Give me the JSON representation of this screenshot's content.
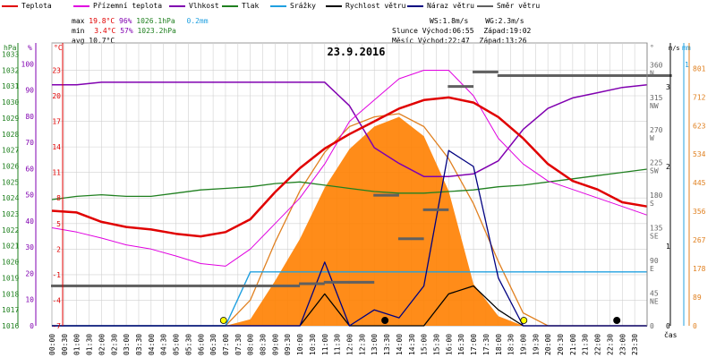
{
  "legend": [
    {
      "label": "Teplota",
      "color": "#e00000"
    },
    {
      "label": "Přízemní teplota",
      "color": "#e000e0"
    },
    {
      "label": "Vlhkost",
      "color": "#8000b0"
    },
    {
      "label": "Tlak",
      "color": "#208020"
    },
    {
      "label": "Srážky",
      "color": "#20a0e0"
    },
    {
      "label": "Rychlost větru",
      "color": "#000000"
    },
    {
      "label": "Náraz větru",
      "color": "#000080"
    },
    {
      "label": "Směr větru",
      "color": "#606060"
    }
  ],
  "stats": {
    "max": {
      "label": "max",
      "temp": "19.8°C",
      "hum": "96%",
      "press": "1026.1hPa",
      "rain": "0.2mm"
    },
    "min": {
      "label": "min",
      "temp": "3.4°C",
      "hum": "57%",
      "press": "1023.2hPa"
    },
    "avg": {
      "label": "avg",
      "temp": "10.7°C"
    }
  },
  "info": {
    "ws": "WS:1.8m/s",
    "wg": "WG:2.3m/s",
    "sun_label": "Slunce",
    "sun_rise": "Východ:06:55",
    "sun_set": "Západ:19:02",
    "moon_label": "Měsíc",
    "moon_rise": "Východ:22:47",
    "moon_set": "Západ:13:26"
  },
  "colors": {
    "temp": "#e00000",
    "ground": "#e000e0",
    "hum": "#8000b0",
    "press": "#208020",
    "rain": "#20a0e0",
    "wind": "#000000",
    "gust": "#000080",
    "dir": "#606060",
    "solar_fill": "#ff8000",
    "solar_curve": "#e08020",
    "grid": "#d0d0d0"
  },
  "chart_data": {
    "type": "line",
    "title": "23.9.2016",
    "xlabel": "čas",
    "x_ticks": [
      "00:00",
      "00:30",
      "01:00",
      "01:30",
      "02:00",
      "02:30",
      "03:00",
      "03:30",
      "04:00",
      "04:30",
      "05:00",
      "05:30",
      "06:00",
      "06:30",
      "07:00",
      "07:30",
      "08:00",
      "08:30",
      "09:00",
      "09:30",
      "10:00",
      "10:30",
      "11:00",
      "11:30",
      "12:00",
      "12:30",
      "13:00",
      "13:30",
      "14:00",
      "14:30",
      "15:00",
      "15:30",
      "16:00",
      "16:30",
      "17:00",
      "17:30",
      "18:00",
      "18:30",
      "19:00",
      "19:30",
      "20:00",
      "20:30",
      "21:00",
      "21:30",
      "22:00",
      "22:30",
      "23:00",
      "23:30"
    ],
    "axes": {
      "hpa": {
        "unit": "hPa",
        "ticks": [
          "1016",
          "1017",
          "1018",
          "1019",
          "1020",
          "1021",
          "1022",
          "1023",
          "1024",
          "1025",
          "1026",
          "1027",
          "1028",
          "1029",
          "1030",
          "1031",
          "1032",
          "1033"
        ]
      },
      "pct": {
        "unit": "%",
        "ticks": [
          "0",
          "10",
          "20",
          "30",
          "40",
          "50",
          "60",
          "70",
          "80",
          "90",
          "100"
        ]
      },
      "degc": {
        "unit": "°C",
        "ticks": [
          "-7",
          "-4",
          "-1",
          "2",
          "5",
          "8",
          "11",
          "14",
          "17",
          "20",
          "23"
        ]
      },
      "deg": {
        "unit": "°",
        "ticks": [
          "0",
          "45",
          "90",
          "135",
          "180",
          "225",
          "270",
          "315",
          "360"
        ],
        "dirs": [
          "NE",
          "E",
          "SE",
          "S",
          "SW",
          "W",
          "NW",
          "N"
        ]
      },
      "ms": {
        "unit": "m/s",
        "ticks": [
          "0",
          "1",
          "2",
          "3"
        ]
      },
      "mm": {
        "unit": "mm",
        "ticks": [
          "1"
        ]
      },
      "wm2": {
        "unit": "",
        "ticks": [
          "0",
          "89",
          "178",
          "267",
          "356",
          "445",
          "534",
          "623",
          "712",
          "801"
        ]
      }
    },
    "hours": [
      0,
      1,
      2,
      3,
      4,
      5,
      6,
      7,
      8,
      9,
      10,
      11,
      12,
      13,
      14,
      15,
      16,
      17,
      18,
      19,
      20,
      21,
      22,
      23,
      24
    ],
    "series": [
      {
        "name": "Teplota",
        "unit": "°C",
        "axis": "degc",
        "values": [
          6.5,
          6.3,
          5.2,
          4.6,
          4.3,
          3.8,
          3.5,
          4.0,
          5.5,
          8.7,
          11.5,
          13.8,
          15.5,
          17.0,
          18.5,
          19.5,
          19.8,
          19.2,
          17.5,
          15.0,
          12.0,
          10.0,
          9.0,
          7.5,
          7.0
        ]
      },
      {
        "name": "Přízemní teplota",
        "unit": "°C",
        "axis": "degc",
        "values": [
          4.5,
          4.0,
          3.3,
          2.5,
          2.0,
          1.2,
          0.3,
          0.0,
          2.0,
          5.0,
          8.0,
          12.0,
          17.0,
          19.5,
          22.0,
          23.0,
          23.0,
          20.0,
          15.0,
          12.0,
          10.0,
          9.0,
          8.0,
          7.0,
          6.0
        ]
      },
      {
        "name": "Vlhkost",
        "unit": "%",
        "axis": "pct",
        "values": [
          92,
          92,
          93,
          93,
          93,
          93,
          93,
          93,
          93,
          93,
          93,
          93,
          84,
          68,
          62,
          57,
          57,
          58,
          63,
          75,
          83,
          87,
          89,
          91,
          92
        ]
      },
      {
        "name": "Tlak",
        "unit": "hPa",
        "axis": "hpa",
        "values": [
          1023.9,
          1024.1,
          1024.2,
          1024.1,
          1024.1,
          1024.3,
          1024.5,
          1024.6,
          1024.7,
          1024.9,
          1025.0,
          1024.8,
          1024.6,
          1024.4,
          1024.3,
          1024.3,
          1024.4,
          1024.5,
          1024.7,
          1024.8,
          1025.0,
          1025.2,
          1025.4,
          1025.6,
          1025.8
        ]
      },
      {
        "name": "Srážky",
        "unit": "mm",
        "axis": "mm",
        "values": [
          0,
          0,
          0,
          0,
          0,
          0,
          0,
          0,
          0.2,
          0.2,
          0.2,
          0.2,
          0.2,
          0.2,
          0.2,
          0.2,
          0.2,
          0.2,
          0.2,
          0.2,
          0.2,
          0.2,
          0.2,
          0.2,
          0.2
        ]
      },
      {
        "name": "Rychlost větru",
        "unit": "m/s",
        "axis": "ms",
        "values": [
          0,
          0,
          0,
          0,
          0,
          0,
          0,
          0,
          0,
          0,
          0,
          0.4,
          0,
          0,
          0,
          0,
          0.4,
          0.5,
          0.2,
          0,
          0,
          0,
          0,
          0,
          0
        ]
      },
      {
        "name": "Náraz větru",
        "unit": "m/s",
        "axis": "ms",
        "values": [
          0,
          0,
          0,
          0,
          0,
          0,
          0,
          0,
          0,
          0,
          0,
          0.8,
          0,
          0.2,
          0.1,
          0.5,
          2.2,
          2.0,
          0.6,
          0,
          0,
          0,
          0,
          0,
          0
        ]
      },
      {
        "name": "Směr větru",
        "unit": "°",
        "axis": "deg",
        "values": [
          55,
          55,
          55,
          55,
          55,
          55,
          55,
          55,
          55,
          55,
          58,
          60,
          60,
          180,
          120,
          160,
          330,
          350,
          345,
          345,
          345,
          345,
          345,
          345,
          345
        ]
      },
      {
        "name": "Solar",
        "unit": "W/m2",
        "axis": "wm2",
        "values": [
          0,
          0,
          0,
          0,
          0,
          0,
          0,
          0,
          20,
          140,
          270,
          430,
          550,
          620,
          650,
          590,
          420,
          130,
          30,
          0,
          0,
          0,
          0,
          0,
          0
        ]
      },
      {
        "name": "Solar max",
        "unit": "W/m2",
        "axis": "wm2",
        "values": [
          0,
          0,
          0,
          0,
          0,
          0,
          0,
          0,
          80,
          260,
          420,
          540,
          620,
          650,
          660,
          620,
          520,
          380,
          200,
          40,
          0,
          0,
          0,
          0,
          0
        ]
      }
    ]
  }
}
